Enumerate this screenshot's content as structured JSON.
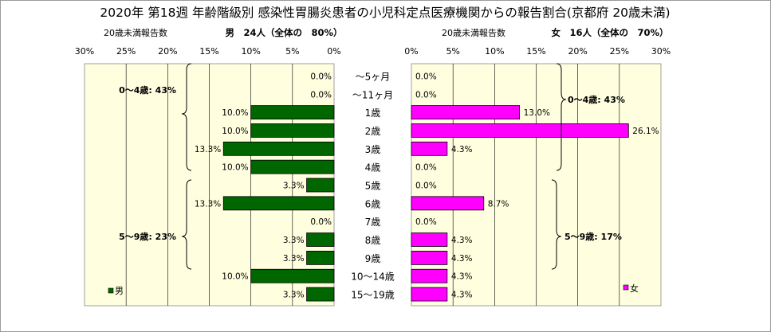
{
  "title": "2020年 第18週 年齢階級別 感染性胃腸炎患者の小児科定点医療機関からの報告割合(京都府 20歳未満)",
  "left_panel": {
    "subtitle_label": "20歳未満報告数",
    "summary": "男　24人（全体の　80%）",
    "legend": "男",
    "group1": "0～4歳: 43%",
    "group2": "5～9歳: 23%"
  },
  "right_panel": {
    "subtitle_label": "20歳未満報告数",
    "summary": "女　16人（全体の　70%）",
    "legend": "女",
    "group1": "0～4歳: 43%",
    "group2": "5～9歳: 17%"
  },
  "colors": {
    "male": "#006600",
    "female": "#ff00ff",
    "plot_bg": "#ffffe0"
  },
  "chart_data": [
    {
      "type": "bar",
      "orientation": "horizontal",
      "direction": "right-to-left",
      "categories": [
        "～5ヶ月",
        "～11ヶ月",
        "1歳",
        "2歳",
        "3歳",
        "4歳",
        "5歳",
        "6歳",
        "7歳",
        "8歳",
        "9歳",
        "10～14歳",
        "15～19歳"
      ],
      "series": [
        {
          "name": "男",
          "values": [
            0.0,
            0.0,
            10.0,
            10.0,
            13.3,
            10.0,
            3.3,
            13.3,
            0.0,
            3.3,
            3.3,
            10.0,
            3.3
          ]
        }
      ],
      "data_labels": [
        "0.0%",
        "0.0%",
        "10.0%",
        "10.0%",
        "13.3%",
        "10.0%",
        "3.3%",
        "13.3%",
        "0.0%",
        "3.3%",
        "3.3%",
        "10.0%",
        "3.3%"
      ],
      "xlim": [
        0,
        30
      ],
      "ticks": [
        "30%",
        "25%",
        "20%",
        "15%",
        "10%",
        "5%",
        "0%"
      ],
      "grid": true
    },
    {
      "type": "bar",
      "orientation": "horizontal",
      "direction": "left-to-right",
      "categories": [
        "～5ヶ月",
        "～11ヶ月",
        "1歳",
        "2歳",
        "3歳",
        "4歳",
        "5歳",
        "6歳",
        "7歳",
        "8歳",
        "9歳",
        "10～14歳",
        "15～19歳"
      ],
      "series": [
        {
          "name": "女",
          "values": [
            0.0,
            0.0,
            13.0,
            26.1,
            4.3,
            0.0,
            0.0,
            8.7,
            0.0,
            4.3,
            4.3,
            4.3,
            4.3
          ]
        }
      ],
      "data_labels": [
        "0.0%",
        "0.0%",
        "13.0%",
        "26.1%",
        "4.3%",
        "0.0%",
        "0.0%",
        "8.7%",
        "0.0%",
        "4.3%",
        "4.3%",
        "4.3%",
        "4.3%"
      ],
      "xlim": [
        0,
        30
      ],
      "ticks": [
        "0%",
        "5%",
        "10%",
        "15%",
        "20%",
        "25%",
        "30%"
      ],
      "grid": true
    }
  ]
}
